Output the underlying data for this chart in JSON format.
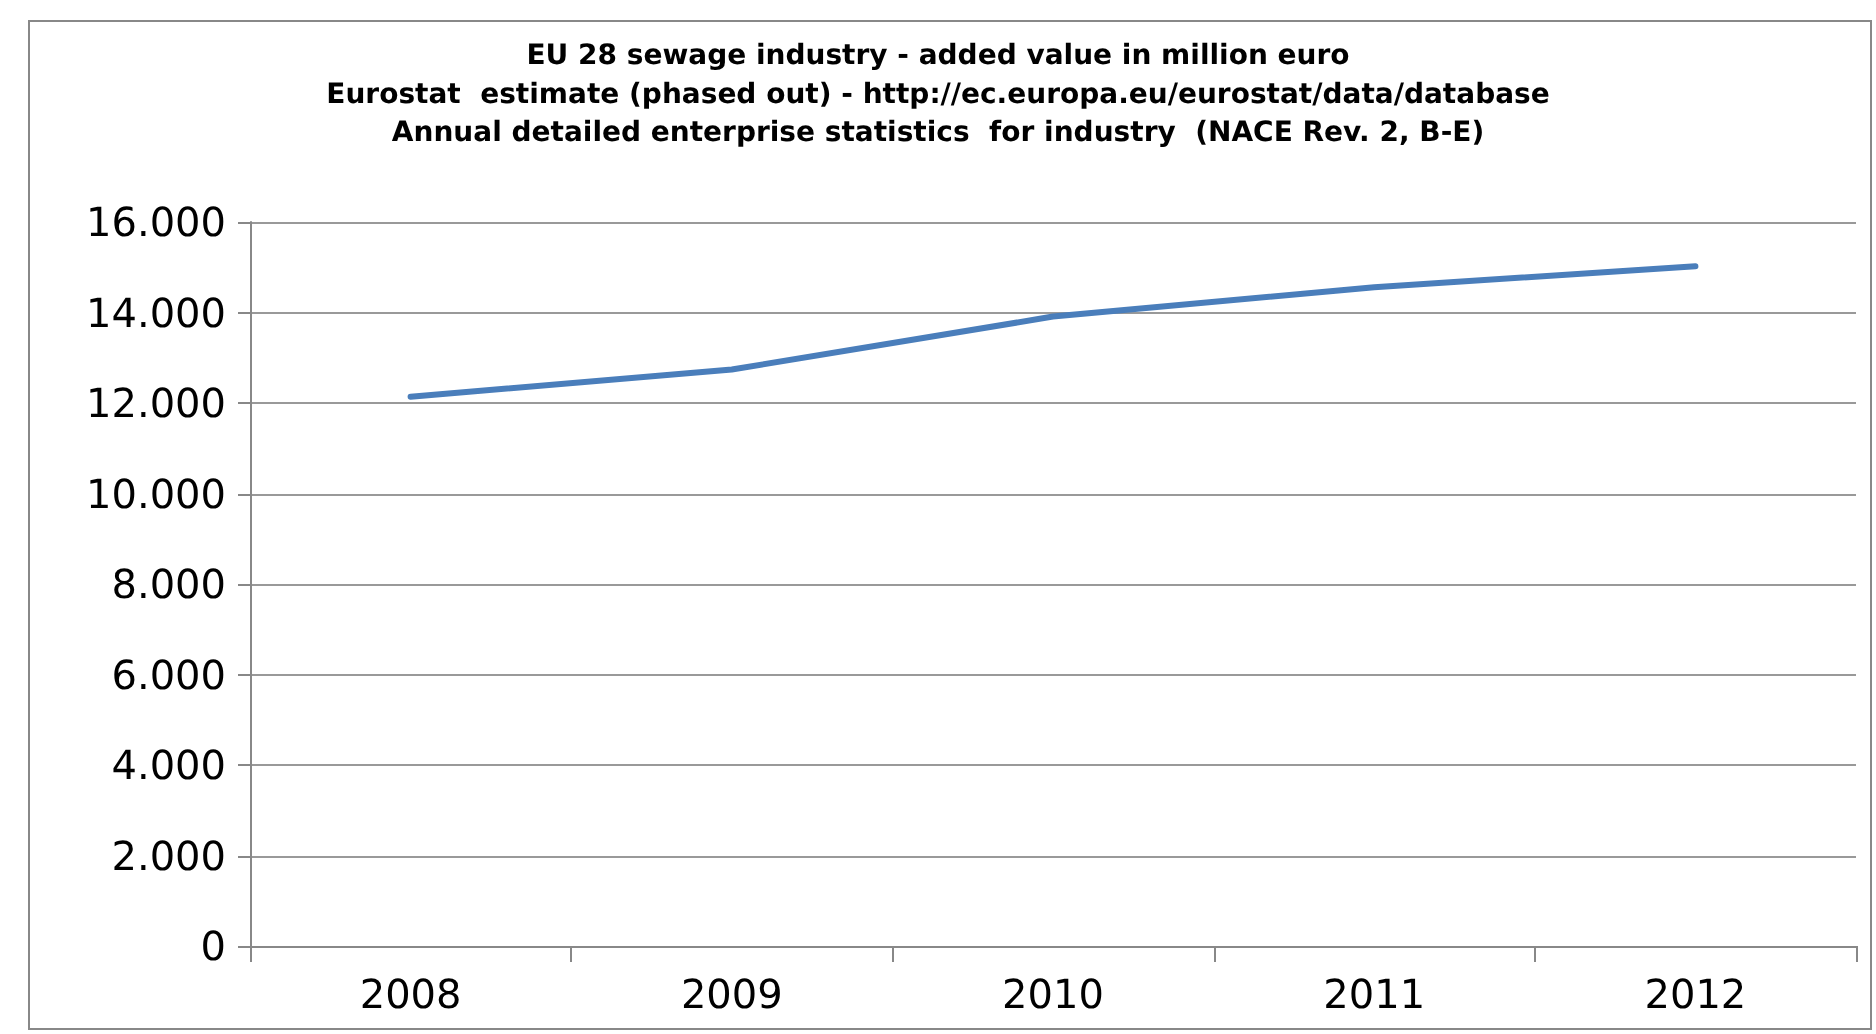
{
  "chart_data": {
    "type": "line",
    "title": "EU 28 sewage industry - added value in million euro",
    "subtitle": "Eurostat  estimate (phased out) - http://ec.europa.eu/eurostat/data/database\nAnnual detailed enterprise statistics  for industry  (NACE Rev. 2, B-E)",
    "categories": [
      "2008",
      "2009",
      "2010",
      "2011",
      "2012"
    ],
    "series": [
      {
        "color": "#4a7ebb",
        "values": [
          12140,
          12740,
          13910,
          14560,
          15020
        ]
      }
    ],
    "ylim": [
      0,
      16000
    ],
    "yticks": [
      {
        "value": 0,
        "label": "0"
      },
      {
        "value": 2000,
        "label": "2.000"
      },
      {
        "value": 4000,
        "label": "4.000"
      },
      {
        "value": 6000,
        "label": "6.000"
      },
      {
        "value": 8000,
        "label": "8.000"
      },
      {
        "value": 10000,
        "label": "10.000"
      },
      {
        "value": 12000,
        "label": "12.000"
      },
      {
        "value": 14000,
        "label": "14.000"
      },
      {
        "value": 16000,
        "label": "16.000"
      }
    ],
    "grid": "y",
    "marker": "none",
    "line_style": "solid"
  }
}
